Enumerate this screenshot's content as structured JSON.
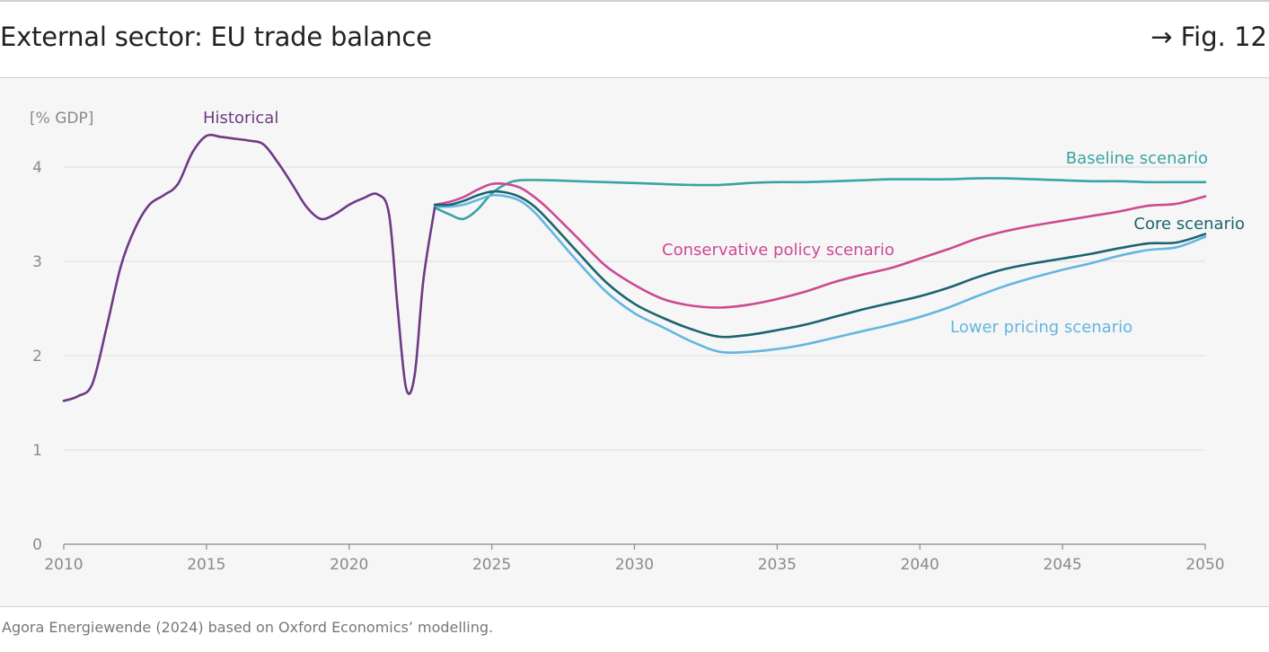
{
  "header": {
    "title": "External sector: EU trade balance",
    "fig_ref": "→ Fig. 12"
  },
  "source": "Agora Energiewende (2024) based on Oxford Economics’ modelling.",
  "colors": {
    "historical": "#6e3a86",
    "baseline": "#3aa3a3",
    "conservative": "#cc4a93",
    "core": "#1b6470",
    "lower": "#63b6e0",
    "grid": "#e4e4e4",
    "axis": "#8a8a8a"
  },
  "chart_data": {
    "type": "line",
    "title": "External sector: EU trade balance",
    "unit_label": "[% GDP]",
    "xlim": [
      2010,
      2050
    ],
    "ylim": [
      0,
      4.4
    ],
    "x_ticks": [
      2010,
      2015,
      2020,
      2025,
      2030,
      2035,
      2040,
      2045,
      2050
    ],
    "y_ticks": [
      0,
      1,
      2,
      3,
      4
    ],
    "grid": "horizontal",
    "series": [
      {
        "name": "Historical",
        "key": "historical",
        "points": [
          [
            2010,
            1.52
          ],
          [
            2010.5,
            1.57
          ],
          [
            2011,
            1.7
          ],
          [
            2011.5,
            2.3
          ],
          [
            2012,
            2.95
          ],
          [
            2012.5,
            3.35
          ],
          [
            2013,
            3.6
          ],
          [
            2013.5,
            3.7
          ],
          [
            2014,
            3.82
          ],
          [
            2014.5,
            4.15
          ],
          [
            2015,
            4.33
          ],
          [
            2015.5,
            4.32
          ],
          [
            2016,
            4.3
          ],
          [
            2016.5,
            4.28
          ],
          [
            2017,
            4.24
          ],
          [
            2017.5,
            4.05
          ],
          [
            2018,
            3.82
          ],
          [
            2018.5,
            3.58
          ],
          [
            2019,
            3.45
          ],
          [
            2019.5,
            3.5
          ],
          [
            2020,
            3.6
          ],
          [
            2020.5,
            3.67
          ],
          [
            2021,
            3.71
          ],
          [
            2021.4,
            3.5
          ],
          [
            2021.7,
            2.5
          ],
          [
            2022,
            1.65
          ],
          [
            2022.3,
            1.8
          ],
          [
            2022.6,
            2.8
          ],
          [
            2023,
            3.57
          ]
        ]
      },
      {
        "name": "Baseline scenario",
        "key": "baseline",
        "points": [
          [
            2023,
            3.57
          ],
          [
            2023.5,
            3.5
          ],
          [
            2024,
            3.45
          ],
          [
            2024.5,
            3.55
          ],
          [
            2025,
            3.72
          ],
          [
            2025.5,
            3.82
          ],
          [
            2026,
            3.86
          ],
          [
            2027,
            3.86
          ],
          [
            2028,
            3.85
          ],
          [
            2029,
            3.84
          ],
          [
            2030,
            3.83
          ],
          [
            2031,
            3.82
          ],
          [
            2032,
            3.81
          ],
          [
            2033,
            3.81
          ],
          [
            2034,
            3.83
          ],
          [
            2035,
            3.84
          ],
          [
            2036,
            3.84
          ],
          [
            2037,
            3.85
          ],
          [
            2038,
            3.86
          ],
          [
            2039,
            3.87
          ],
          [
            2040,
            3.87
          ],
          [
            2041,
            3.87
          ],
          [
            2042,
            3.88
          ],
          [
            2043,
            3.88
          ],
          [
            2044,
            3.87
          ],
          [
            2045,
            3.86
          ],
          [
            2046,
            3.85
          ],
          [
            2047,
            3.85
          ],
          [
            2048,
            3.84
          ],
          [
            2049,
            3.84
          ],
          [
            2050,
            3.84
          ]
        ]
      },
      {
        "name": "Conservative policy scenario",
        "key": "conservative",
        "points": [
          [
            2023,
            3.6
          ],
          [
            2023.5,
            3.63
          ],
          [
            2024,
            3.68
          ],
          [
            2024.5,
            3.76
          ],
          [
            2025,
            3.82
          ],
          [
            2025.5,
            3.82
          ],
          [
            2026,
            3.78
          ],
          [
            2026.5,
            3.68
          ],
          [
            2027,
            3.55
          ],
          [
            2028,
            3.25
          ],
          [
            2029,
            2.95
          ],
          [
            2030,
            2.75
          ],
          [
            2031,
            2.6
          ],
          [
            2032,
            2.53
          ],
          [
            2033,
            2.51
          ],
          [
            2034,
            2.54
          ],
          [
            2035,
            2.6
          ],
          [
            2036,
            2.68
          ],
          [
            2037,
            2.78
          ],
          [
            2038,
            2.86
          ],
          [
            2039,
            2.93
          ],
          [
            2040,
            3.03
          ],
          [
            2041,
            3.13
          ],
          [
            2042,
            3.24
          ],
          [
            2043,
            3.32
          ],
          [
            2044,
            3.38
          ],
          [
            2045,
            3.43
          ],
          [
            2046,
            3.48
          ],
          [
            2047,
            3.53
          ],
          [
            2048,
            3.59
          ],
          [
            2049,
            3.61
          ],
          [
            2050,
            3.69
          ]
        ]
      },
      {
        "name": "Core scenario",
        "key": "core",
        "points": [
          [
            2023,
            3.6
          ],
          [
            2023.5,
            3.6
          ],
          [
            2024,
            3.64
          ],
          [
            2024.5,
            3.7
          ],
          [
            2025,
            3.74
          ],
          [
            2025.5,
            3.73
          ],
          [
            2026,
            3.68
          ],
          [
            2026.5,
            3.58
          ],
          [
            2027,
            3.43
          ],
          [
            2028,
            3.1
          ],
          [
            2029,
            2.78
          ],
          [
            2030,
            2.55
          ],
          [
            2031,
            2.4
          ],
          [
            2032,
            2.28
          ],
          [
            2033,
            2.2
          ],
          [
            2034,
            2.22
          ],
          [
            2035,
            2.27
          ],
          [
            2036,
            2.33
          ],
          [
            2037,
            2.41
          ],
          [
            2038,
            2.49
          ],
          [
            2039,
            2.56
          ],
          [
            2040,
            2.63
          ],
          [
            2041,
            2.72
          ],
          [
            2042,
            2.83
          ],
          [
            2043,
            2.92
          ],
          [
            2044,
            2.98
          ],
          [
            2045,
            3.03
          ],
          [
            2046,
            3.08
          ],
          [
            2047,
            3.14
          ],
          [
            2048,
            3.19
          ],
          [
            2049,
            3.2
          ],
          [
            2050,
            3.29
          ]
        ]
      },
      {
        "name": "Lower pricing scenario",
        "key": "lower",
        "points": [
          [
            2023,
            3.58
          ],
          [
            2023.5,
            3.58
          ],
          [
            2024,
            3.6
          ],
          [
            2024.5,
            3.65
          ],
          [
            2025,
            3.7
          ],
          [
            2025.5,
            3.69
          ],
          [
            2026,
            3.64
          ],
          [
            2026.5,
            3.52
          ],
          [
            2027,
            3.35
          ],
          [
            2028,
            3.0
          ],
          [
            2029,
            2.68
          ],
          [
            2030,
            2.45
          ],
          [
            2031,
            2.3
          ],
          [
            2032,
            2.15
          ],
          [
            2033,
            2.04
          ],
          [
            2034,
            2.04
          ],
          [
            2035,
            2.07
          ],
          [
            2036,
            2.12
          ],
          [
            2037,
            2.19
          ],
          [
            2038,
            2.26
          ],
          [
            2039,
            2.33
          ],
          [
            2040,
            2.41
          ],
          [
            2041,
            2.51
          ],
          [
            2042,
            2.63
          ],
          [
            2043,
            2.74
          ],
          [
            2044,
            2.83
          ],
          [
            2045,
            2.91
          ],
          [
            2046,
            2.98
          ],
          [
            2047,
            3.06
          ],
          [
            2048,
            3.12
          ],
          [
            2049,
            3.15
          ],
          [
            2050,
            3.26
          ]
        ]
      }
    ]
  }
}
